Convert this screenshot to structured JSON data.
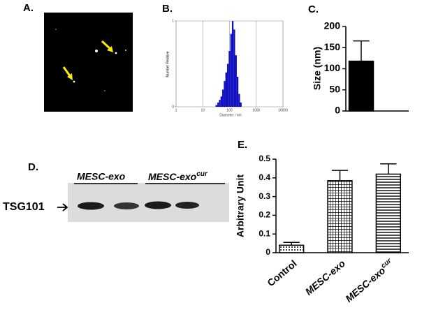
{
  "panel_a": {
    "label": "A."
  },
  "panel_d": {
    "label": "D.",
    "group_labels": [
      "MESC-exo",
      "MESC-exo"
    ],
    "group_superscripts": [
      null,
      "cur"
    ],
    "band_label": "TSG101"
  },
  "chart_data": [
    {
      "type": "histogram",
      "panel_label": "B.",
      "x_label": "Diameter / nm",
      "y_label": "Number Relative",
      "bins": [
        30,
        35,
        40,
        46,
        53,
        61,
        70,
        81,
        93,
        107,
        123,
        141,
        162,
        187,
        215,
        247,
        284
      ],
      "counts": [
        0.02,
        0.05,
        0.08,
        0.12,
        0.2,
        0.3,
        0.4,
        0.5,
        0.65,
        0.85,
        1,
        0.9,
        0.6,
        0.35,
        0.15,
        0.05
      ],
      "color": "#1010c0",
      "log_x": true,
      "xlim": [
        1,
        10000
      ],
      "xticks": [
        1,
        10,
        100,
        1000,
        10000
      ],
      "ylim": [
        0,
        1
      ],
      "yticks": [
        0,
        1
      ],
      "grid": true
    },
    {
      "type": "bar",
      "panel_label": "C.",
      "y_label": "Size (nm)",
      "categories": [
        null
      ],
      "values": [
        118
      ],
      "errors": [
        48
      ],
      "color": "#000000",
      "ylim": [
        0,
        200
      ],
      "yticks": [
        0,
        50,
        100,
        150,
        200
      ]
    },
    {
      "type": "bar",
      "panel_label": "E.",
      "y_label": "Arbitrary Unit",
      "categories": [
        "Control",
        "MESC-exo",
        "MESC-exo"
      ],
      "category_superscripts": [
        null,
        null,
        "cur"
      ],
      "values": [
        0.04,
        0.385,
        0.42
      ],
      "errors": [
        0.015,
        0.055,
        0.055
      ],
      "fills": [
        "dots",
        "crosshatch",
        "hlines"
      ],
      "color": "#000000",
      "ylim": [
        0,
        0.5
      ],
      "yticks": [
        0,
        0.1,
        0.2,
        0.3,
        0.4,
        0.5
      ]
    }
  ]
}
